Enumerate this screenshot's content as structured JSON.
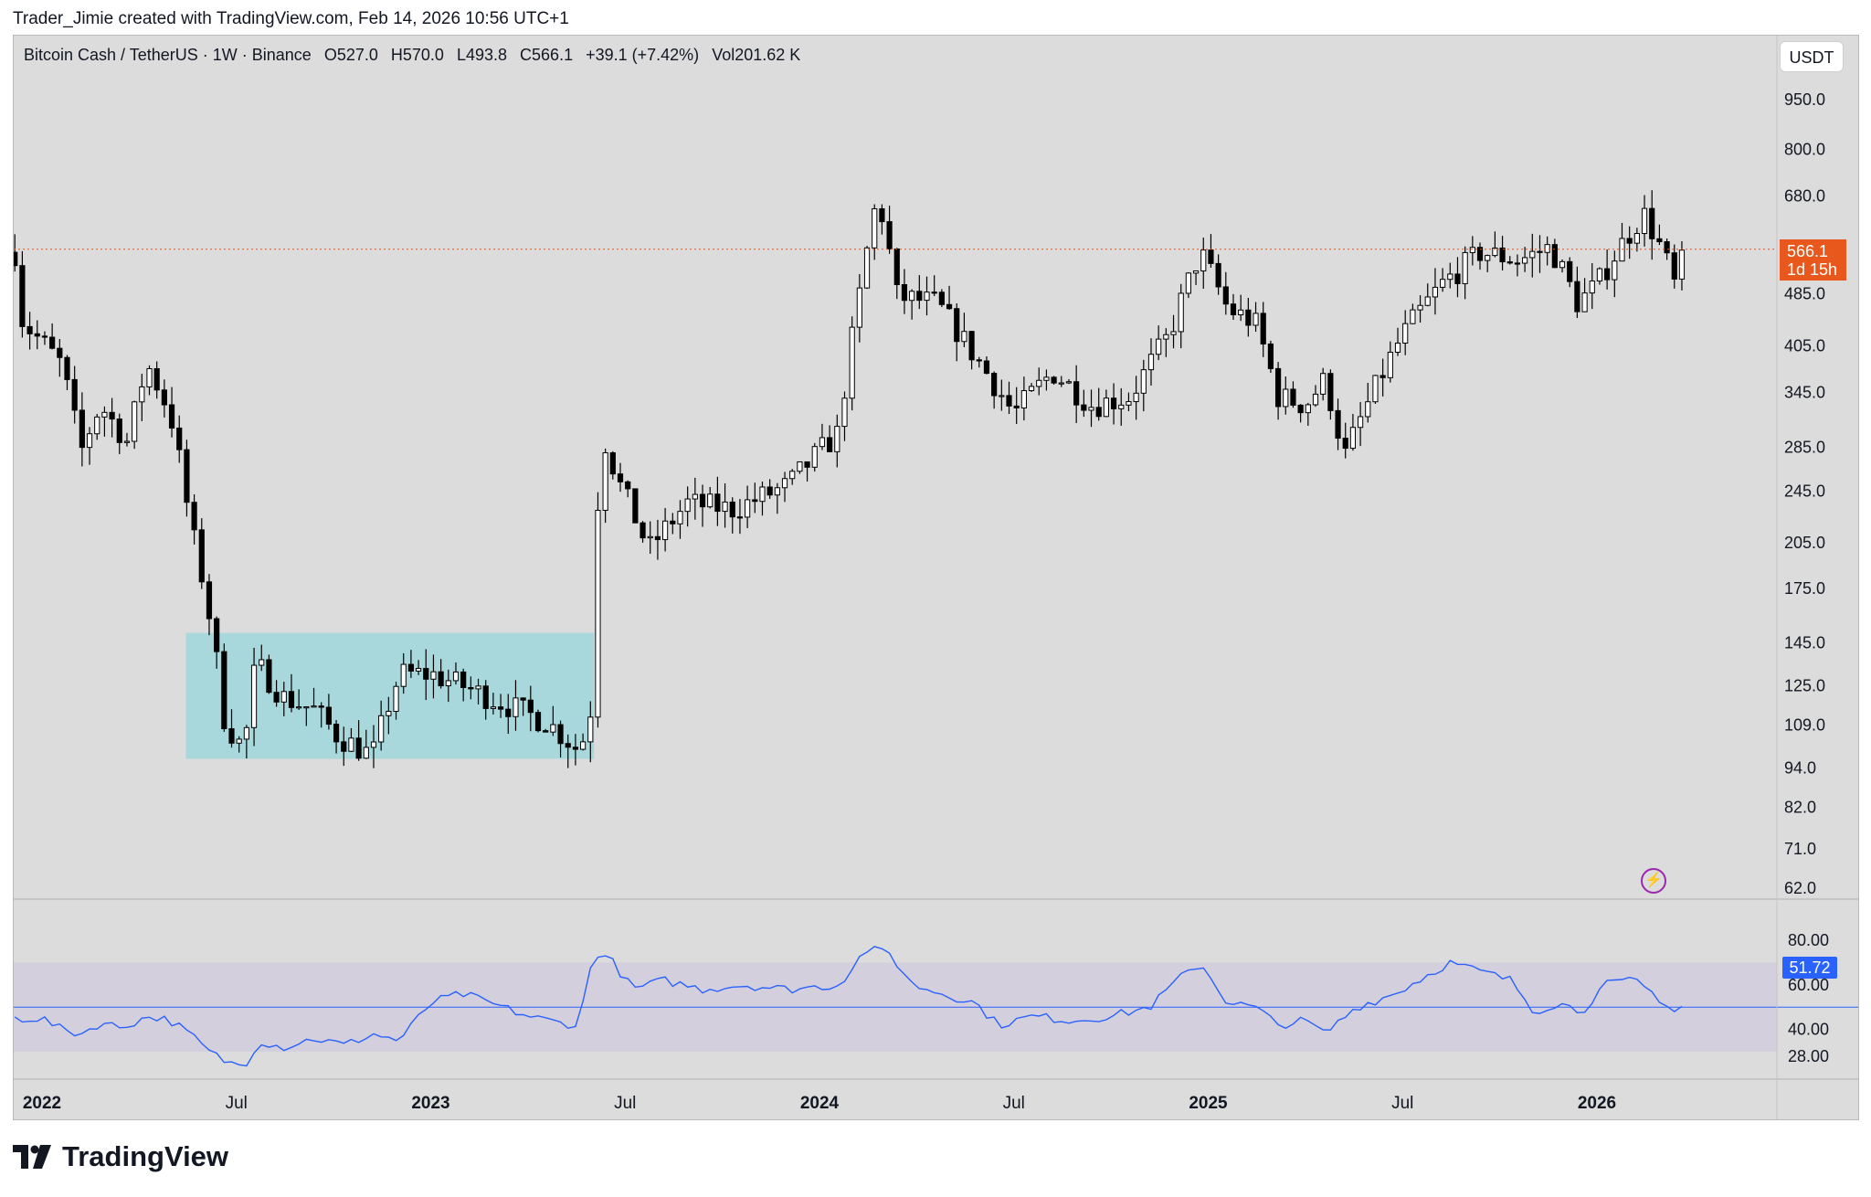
{
  "attribution": "Trader_Jimie created with TradingView.com, Feb 14, 2026 10:56 UTC+1",
  "legend": {
    "symbol": "Bitcoin Cash / TetherUS · 1W · Binance",
    "open": "O527.0",
    "high": "H570.0",
    "low": "L493.8",
    "close": "C566.1",
    "change": "+39.1 (+7.42%)",
    "volume": "Vol201.62 K"
  },
  "currency_button": "USDT",
  "last_price": {
    "value": "566.1",
    "countdown": "1d 15h"
  },
  "rsi_value": "51.72",
  "brand": "TradingView",
  "colors": {
    "background": "#dcdcdc",
    "last_price_line": "#e8581c",
    "range_box": "#a8d8dc",
    "rsi_line": "#2962ff",
    "rsi_band": "#d4cfdc",
    "candle_down": "#000000",
    "candle_up": "#ffffff"
  },
  "chart_data": {
    "type": "candlestick",
    "scale": "log",
    "price_ticks": [
      950,
      800,
      680,
      566.1,
      485,
      405,
      345,
      285,
      245,
      205,
      175,
      145,
      125,
      109,
      94,
      82,
      71,
      62
    ],
    "price_tick_labels": [
      "950.0",
      "800.0",
      "680.0",
      "485.0",
      "405.0",
      "345.0",
      "285.0",
      "245.0",
      "205.0",
      "175.0",
      "145.0",
      "125.0",
      "109.0",
      "94.0",
      "82.0",
      "71.0",
      "62.0"
    ],
    "time_labels": [
      {
        "label": "2022",
        "bold": true,
        "t": 0.0
      },
      {
        "label": "Jul",
        "bold": false,
        "t": 0.5
      },
      {
        "label": "2023",
        "bold": true,
        "t": 1.0
      },
      {
        "label": "Jul",
        "bold": false,
        "t": 1.5
      },
      {
        "label": "2024",
        "bold": true,
        "t": 2.0
      },
      {
        "label": "Jul",
        "bold": false,
        "t": 2.5
      },
      {
        "label": "2025",
        "bold": true,
        "t": 3.0
      },
      {
        "label": "Jul",
        "bold": false,
        "t": 3.5
      },
      {
        "label": "2026",
        "bold": true,
        "t": 4.0
      }
    ],
    "range_box": {
      "t_start": 0.37,
      "t_end": 1.42,
      "price_low": 97,
      "price_high": 150
    },
    "last_price_line": 566.1,
    "price_anchors": [
      [
        -0.07,
        560
      ],
      [
        -0.05,
        440
      ],
      [
        0.0,
        410
      ],
      [
        0.05,
        380
      ],
      [
        0.1,
        280
      ],
      [
        0.15,
        330
      ],
      [
        0.22,
        290
      ],
      [
        0.27,
        380
      ],
      [
        0.33,
        320
      ],
      [
        0.38,
        220
      ],
      [
        0.43,
        160
      ],
      [
        0.47,
        110
      ],
      [
        0.52,
        100
      ],
      [
        0.55,
        135
      ],
      [
        0.62,
        120
      ],
      [
        0.7,
        115
      ],
      [
        0.76,
        105
      ],
      [
        0.85,
        98
      ],
      [
        0.92,
        130
      ],
      [
        1.0,
        130
      ],
      [
        1.08,
        125
      ],
      [
        1.15,
        120
      ],
      [
        1.3,
        110
      ],
      [
        1.38,
        100
      ],
      [
        1.41,
        110
      ],
      [
        1.44,
        300
      ],
      [
        1.48,
        255
      ],
      [
        1.56,
        200
      ],
      [
        1.66,
        235
      ],
      [
        1.78,
        230
      ],
      [
        1.92,
        250
      ],
      [
        2.05,
        300
      ],
      [
        2.1,
        470
      ],
      [
        2.15,
        680
      ],
      [
        2.2,
        480
      ],
      [
        2.3,
        470
      ],
      [
        2.4,
        390
      ],
      [
        2.5,
        320
      ],
      [
        2.6,
        370
      ],
      [
        2.7,
        330
      ],
      [
        2.8,
        340
      ],
      [
        2.9,
        420
      ],
      [
        2.98,
        560
      ],
      [
        3.05,
        460
      ],
      [
        3.12,
        440
      ],
      [
        3.18,
        340
      ],
      [
        3.25,
        330
      ],
      [
        3.3,
        360
      ],
      [
        3.35,
        275
      ],
      [
        3.42,
        340
      ],
      [
        3.5,
        420
      ],
      [
        3.6,
        500
      ],
      [
        3.7,
        560
      ],
      [
        3.8,
        545
      ],
      [
        3.88,
        570
      ],
      [
        3.95,
        470
      ],
      [
        4.0,
        500
      ],
      [
        4.05,
        560
      ],
      [
        4.12,
        640
      ],
      [
        4.17,
        560
      ],
      [
        4.2,
        500
      ],
      [
        4.23,
        566
      ]
    ],
    "rsi": {
      "ticks": [
        80,
        60,
        51.72,
        40,
        28
      ],
      "tick_labels": [
        "80.00",
        "60.00",
        "40.00",
        "28.00"
      ],
      "band": [
        30,
        70
      ],
      "midline": 50,
      "anchors": [
        [
          -0.07,
          45
        ],
        [
          0.0,
          45
        ],
        [
          0.05,
          40
        ],
        [
          0.1,
          38
        ],
        [
          0.15,
          43
        ],
        [
          0.2,
          41
        ],
        [
          0.28,
          46
        ],
        [
          0.33,
          44
        ],
        [
          0.38,
          38
        ],
        [
          0.43,
          30
        ],
        [
          0.48,
          25
        ],
        [
          0.52,
          24
        ],
        [
          0.56,
          35
        ],
        [
          0.62,
          32
        ],
        [
          0.7,
          36
        ],
        [
          0.78,
          33
        ],
        [
          0.85,
          38
        ],
        [
          0.92,
          35
        ],
        [
          1.0,
          52
        ],
        [
          1.08,
          56
        ],
        [
          1.15,
          52
        ],
        [
          1.25,
          46
        ],
        [
          1.33,
          43
        ],
        [
          1.38,
          42
        ],
        [
          1.42,
          75
        ],
        [
          1.46,
          72
        ],
        [
          1.52,
          58
        ],
        [
          1.6,
          62
        ],
        [
          1.7,
          58
        ],
        [
          1.8,
          60
        ],
        [
          1.92,
          58
        ],
        [
          2.05,
          60
        ],
        [
          2.12,
          76
        ],
        [
          2.18,
          74
        ],
        [
          2.24,
          60
        ],
        [
          2.32,
          56
        ],
        [
          2.4,
          52
        ],
        [
          2.46,
          42
        ],
        [
          2.55,
          46
        ],
        [
          2.65,
          44
        ],
        [
          2.75,
          46
        ],
        [
          2.85,
          50
        ],
        [
          2.92,
          62
        ],
        [
          2.98,
          70
        ],
        [
          3.05,
          52
        ],
        [
          3.12,
          50
        ],
        [
          3.18,
          42
        ],
        [
          3.25,
          44
        ],
        [
          3.3,
          38
        ],
        [
          3.38,
          50
        ],
        [
          3.48,
          56
        ],
        [
          3.56,
          64
        ],
        [
          3.62,
          70
        ],
        [
          3.7,
          66
        ],
        [
          3.78,
          62
        ],
        [
          3.84,
          48
        ],
        [
          3.9,
          52
        ],
        [
          3.96,
          48
        ],
        [
          4.02,
          60
        ],
        [
          4.1,
          62
        ],
        [
          4.16,
          54
        ],
        [
          4.2,
          48
        ],
        [
          4.23,
          51.72
        ]
      ]
    }
  }
}
